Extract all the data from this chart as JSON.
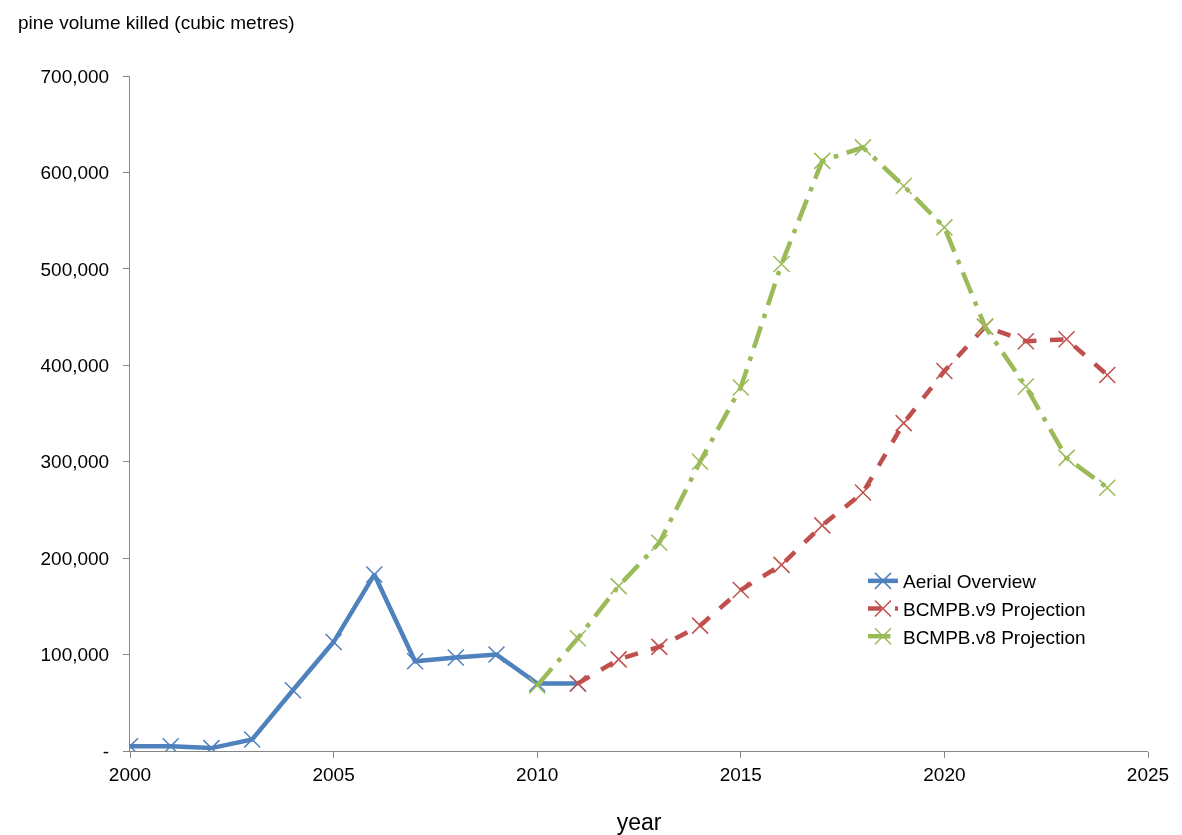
{
  "chart_data": {
    "type": "line",
    "ylabel": "pine volume killed (cubic metres)",
    "xlabel": "year",
    "xlim": [
      2000,
      2025
    ],
    "xticks": [
      2000,
      2005,
      2010,
      2015,
      2020,
      2025
    ],
    "ylim": [
      0,
      700000
    ],
    "yticks": [
      {
        "value": 0,
        "label": "-"
      },
      {
        "value": 100000,
        "label": "100,000"
      },
      {
        "value": 200000,
        "label": "200,000"
      },
      {
        "value": 300000,
        "label": "300,000"
      },
      {
        "value": 400000,
        "label": "400,000"
      },
      {
        "value": 500000,
        "label": "500,000"
      },
      {
        "value": 600000,
        "label": "600,000"
      },
      {
        "value": 700000,
        "label": "700,000"
      }
    ],
    "grid": false,
    "legend": "bottom right",
    "marker": "cross",
    "series": [
      {
        "name": "Aerial Overview",
        "color": "#4f81bd",
        "line_style": "solid",
        "x": [
          2000,
          2001,
          2002,
          2003,
          2004,
          2005,
          2006,
          2007,
          2008,
          2009,
          2010,
          2011
        ],
        "values": [
          5000,
          5000,
          3000,
          12000,
          63000,
          113000,
          183000,
          93000,
          97000,
          100000,
          70000,
          70000
        ]
      },
      {
        "name": "BCMPB.v9 Projection",
        "color": "#c0504d",
        "line_style": "dashed",
        "x": [
          2011,
          2012,
          2013,
          2014,
          2015,
          2016,
          2017,
          2018,
          2019,
          2020,
          2021,
          2022,
          2023,
          2024
        ],
        "values": [
          70000,
          95000,
          108000,
          130000,
          167000,
          193000,
          234000,
          268000,
          340000,
          394000,
          440000,
          425000,
          427000,
          390000
        ]
      },
      {
        "name": "BCMPB.v8 Projection",
        "color": "#9bbb59",
        "line_style": "dotted",
        "x": [
          2010,
          2011,
          2012,
          2013,
          2014,
          2015,
          2016,
          2017,
          2018,
          2019,
          2020,
          2021,
          2022,
          2023,
          2024
        ],
        "values": [
          68000,
          117000,
          171000,
          216000,
          300000,
          377000,
          505000,
          612000,
          626000,
          586000,
          543000,
          440000,
          378000,
          304000,
          273000
        ]
      }
    ]
  }
}
